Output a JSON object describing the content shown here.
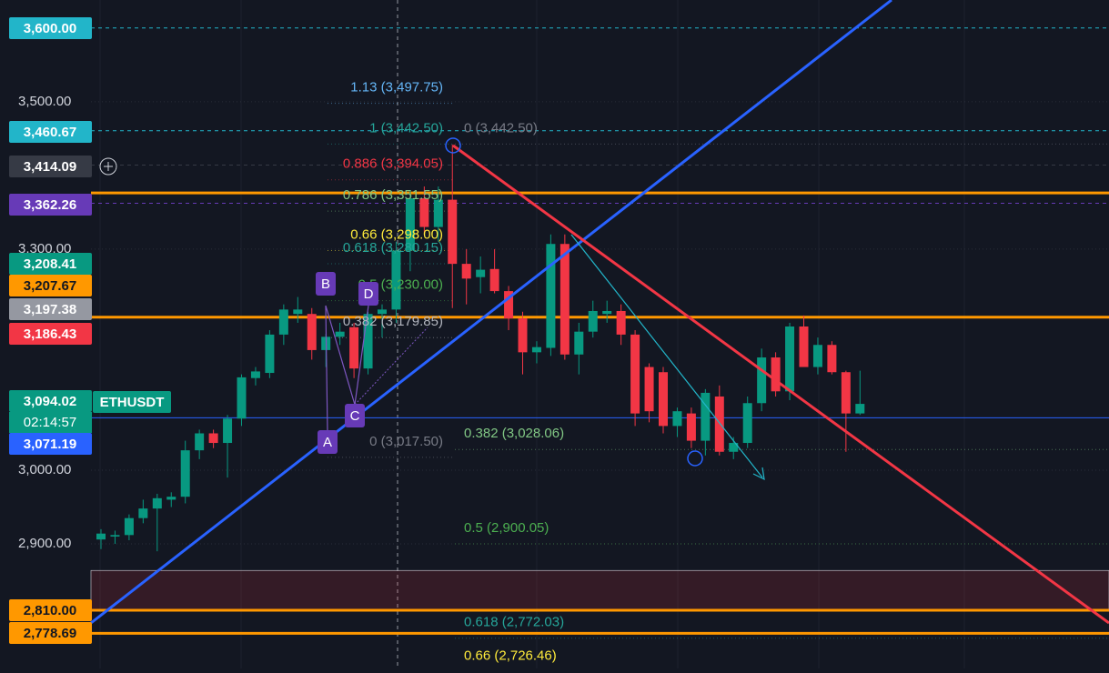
{
  "chart_data": {
    "type": "candlestick",
    "symbol": "ETHUSDT",
    "countdown": "02:14:57",
    "ylim": [
      2731,
      3638
    ],
    "yticks": [
      {
        "value": 3500,
        "label": "3,500.00"
      },
      {
        "value": 3300,
        "label": "3,300.00"
      },
      {
        "value": 3000,
        "label": "3,000.00"
      },
      {
        "value": 2900,
        "label": "2,900.00"
      }
    ],
    "up_color": "#089981",
    "down_color": "#f23645",
    "candles": {
      "open": [
        2906,
        2910,
        2912,
        2935,
        2948,
        2960,
        2964,
        3027,
        3050,
        3037,
        3070,
        3125,
        3132,
        3184,
        3212,
        3212,
        3163,
        3181,
        3194,
        3138,
        3212,
        3218,
        3298,
        3369,
        3330,
        3367,
        3280,
        3262,
        3273,
        3243,
        3206,
        3160,
        3166,
        3307,
        3157,
        3188,
        3212,
        3216,
        3184,
        3140,
        3133,
        3060,
        3077,
        3040,
        3100,
        3025,
        3037,
        3091,
        3153,
        3107,
        3195,
        3140,
        3170,
        3133,
        3077
      ],
      "high": [
        2920,
        2918,
        2940,
        2960,
        2968,
        2970,
        3040,
        3055,
        3055,
        3075,
        3130,
        3140,
        3190,
        3225,
        3235,
        3220,
        3185,
        3200,
        3200,
        3215,
        3225,
        3310,
        3380,
        3385,
        3385,
        3442,
        3300,
        3290,
        3300,
        3250,
        3215,
        3175,
        3320,
        3320,
        3200,
        3230,
        3230,
        3225,
        3190,
        3145,
        3140,
        3085,
        3085,
        3110,
        3115,
        3045,
        3100,
        3165,
        3160,
        3200,
        3210,
        3180,
        3175,
        3135,
        3135
      ],
      "low": [
        2893,
        2900,
        2905,
        2928,
        2890,
        2950,
        2955,
        3015,
        3030,
        2990,
        3060,
        3115,
        3125,
        3170,
        3200,
        3150,
        3140,
        3170,
        3125,
        3130,
        3180,
        3200,
        3270,
        3320,
        3310,
        3220,
        3225,
        3240,
        3240,
        3190,
        3130,
        3145,
        3155,
        3150,
        3130,
        3180,
        3200,
        3170,
        3060,
        3065,
        3050,
        3045,
        3030,
        3020,
        3020,
        3015,
        3030,
        3080,
        3100,
        3095,
        3140,
        3130,
        3130,
        3025,
        3075
      ],
      "close": [
        2914,
        2912,
        2935,
        2948,
        2962,
        2964,
        3027,
        3050,
        3037,
        3070,
        3126,
        3134,
        3184,
        3218,
        3218,
        3163,
        3181,
        3188,
        3138,
        3212,
        3218,
        3298,
        3369,
        3330,
        3367,
        3280,
        3260,
        3272,
        3243,
        3206,
        3160,
        3167,
        3307,
        3157,
        3188,
        3216,
        3216,
        3184,
        3077,
        3080,
        3060,
        3080,
        3040,
        3105,
        3025,
        3037,
        3091,
        3153,
        3107,
        3195,
        3140,
        3170,
        3133,
        3077,
        3090
      ]
    },
    "price_labels": [
      {
        "value": 3600,
        "label": "3,600.00",
        "color": "#22b5c9",
        "line": "dashed"
      },
      {
        "value": 3460.67,
        "label": "3,460.67",
        "color": "#22b5c9",
        "line": "dashed"
      },
      {
        "value": 3414.09,
        "label": "3,414.09",
        "color": "#363a45",
        "line": "dashed"
      },
      {
        "value": 3362.26,
        "label": "3,362.26",
        "color": "#673ab7",
        "line": "dashed"
      },
      {
        "value": 3208.41,
        "label": "3,208.41",
        "color": "#089981"
      },
      {
        "value": 3207.67,
        "label": "3,207.67",
        "color": "#ff9800",
        "line": "solid"
      },
      {
        "value": 3197.38,
        "label": "3,197.38",
        "color": "#9598a1"
      },
      {
        "value": 3186.43,
        "label": "3,186.43",
        "color": "#f23645"
      },
      {
        "value": 3094.02,
        "label": "3,094.02",
        "color": "#089981"
      },
      {
        "value": 3071.19,
        "label": "3,071.19",
        "color": "#2962ff",
        "line": "solid"
      },
      {
        "value": 2810,
        "label": "2,810.00",
        "color": "#ff9800",
        "line": "solid"
      },
      {
        "value": 2778.69,
        "label": "2,778.69",
        "color": "#ff9800",
        "line": "solid"
      }
    ],
    "levels": [
      {
        "value": 3376.17,
        "color": "#ff9800"
      }
    ],
    "zone": [
      2864,
      2810
    ],
    "fib_left": [
      {
        "value": 3497.75,
        "label": "1.13 (3,497.75)",
        "color": "#64b5f6"
      },
      {
        "value": 3442.5,
        "label": "1 (3,442.50)",
        "color": "#26a69a"
      },
      {
        "value": 3394.05,
        "label": "0.886 (3,394.05)",
        "color": "#f23645"
      },
      {
        "value": 3351.55,
        "label": "0.786 (3,351.55)",
        "color": "#81c784"
      },
      {
        "value": 3298,
        "label": "0.66 (3,298.00)",
        "color": "#ffeb3b"
      },
      {
        "value": 3280.15,
        "label": "0.618 (3,280.15)",
        "color": "#26a69a"
      },
      {
        "value": 3230,
        "label": "0.5 (3,230.00)",
        "color": "#4caf50"
      },
      {
        "value": 3179.85,
        "label": "0.382 (3,179.85)",
        "color": "#b2b5be"
      },
      {
        "value": 3017.5,
        "label": "0 (3,017.50)",
        "color": "#787b86"
      }
    ],
    "fib_right": [
      {
        "value": 3442.5,
        "label": "0 (3,442.50)",
        "color": "#787b86"
      },
      {
        "value": 3028.06,
        "label": "0.382 (3,028.06)",
        "color": "#81c784"
      },
      {
        "value": 2900.05,
        "label": "0.5 (2,900.05)",
        "color": "#4caf50"
      },
      {
        "value": 2772.03,
        "label": "0.618 (2,772.03)",
        "color": "#26a69a"
      },
      {
        "value": 2726.46,
        "label": "0.66 (2,726.46)",
        "color": "#ffeb3b"
      }
    ],
    "pattern_points": [
      "A",
      "B",
      "C",
      "D"
    ]
  }
}
